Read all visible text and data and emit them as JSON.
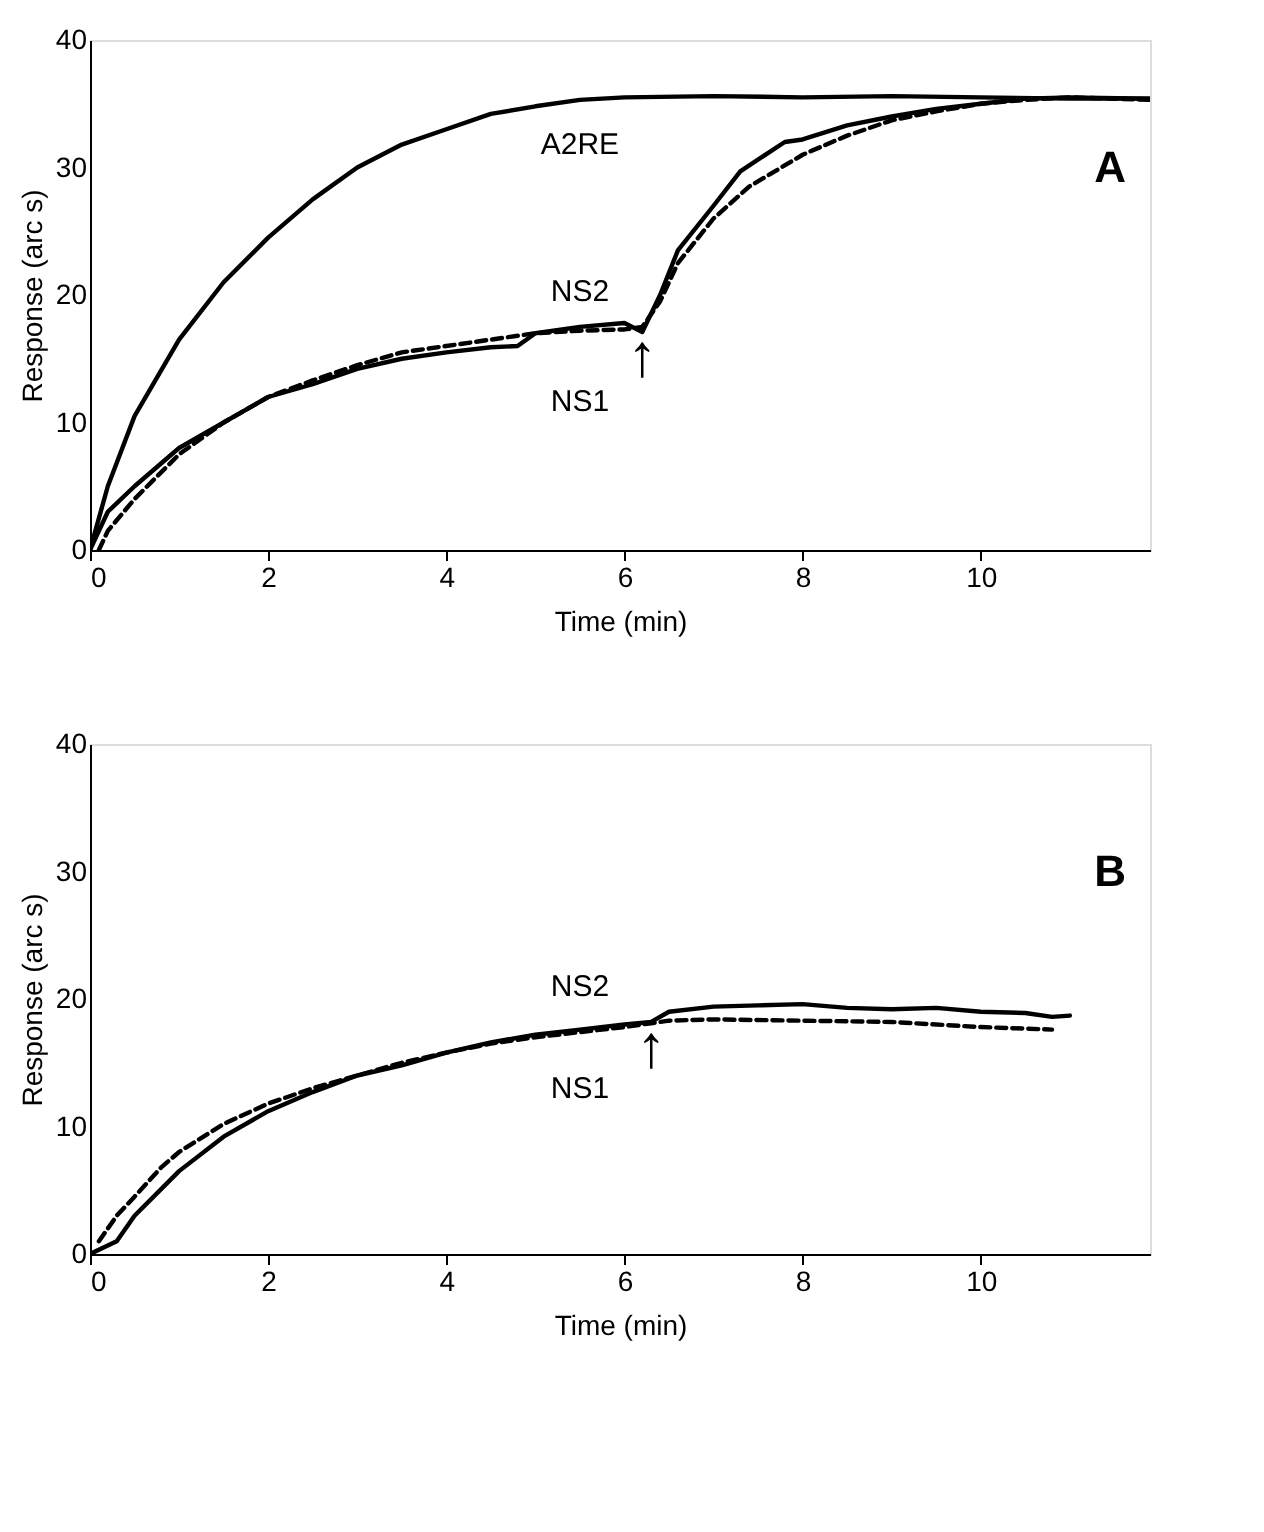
{
  "chart_data": [
    {
      "type": "line",
      "xlabel": "Time (min)",
      "ylabel": "Response (arc s)",
      "xlim": [
        0,
        11.9
      ],
      "ylim": [
        0,
        40
      ],
      "xticks": [
        0,
        2,
        4,
        6,
        8,
        10
      ],
      "yticks": [
        0,
        10,
        20,
        30,
        40
      ],
      "grid": false,
      "annotations": [
        "A",
        {
          "text": "↑",
          "x": 6.2,
          "y": 17.1
        }
      ],
      "series": [
        {
          "name": "A2RE",
          "color": "#000000",
          "line_style": "solid",
          "x": [
            0,
            0.2,
            0.5,
            1,
            1.5,
            2,
            2.5,
            3,
            3.5,
            4,
            4.5,
            5,
            5.5,
            6,
            7,
            8,
            9,
            10,
            11,
            11.9
          ],
          "values": [
            0,
            5,
            10.5,
            16.5,
            21,
            24.5,
            27.5,
            30,
            31.8,
            33,
            34.2,
            34.8,
            35.3,
            35.5,
            35.6,
            35.5,
            35.6,
            35.5,
            35.4,
            35.4
          ]
        },
        {
          "name": "NS2",
          "color": "#000000",
          "line_style": "solid",
          "x": [
            0,
            0.2,
            0.5,
            1,
            1.5,
            2,
            2.5,
            3,
            3.5,
            4,
            4.5,
            4.8,
            5,
            5.5,
            6,
            6.2,
            6.4,
            6.6,
            7,
            7.3,
            7.8,
            8,
            8.5,
            9,
            9.5,
            10,
            10.5,
            11,
            11.9
          ],
          "values": [
            0,
            3,
            5,
            8,
            10,
            12,
            13,
            14.2,
            15,
            15.5,
            15.9,
            16,
            17,
            17.5,
            17.8,
            17.1,
            20,
            23.5,
            27,
            29.7,
            32,
            32.2,
            33.3,
            34,
            34.6,
            35,
            35.4,
            35.5,
            35.4
          ]
        },
        {
          "name": "NS1",
          "color": "#000000",
          "line_style": "dashed",
          "x": [
            0.1,
            0.2,
            0.5,
            1,
            1.5,
            2,
            2.5,
            3,
            3.5,
            4,
            4.5,
            5,
            5.5,
            6,
            6.2,
            6.4,
            6.6,
            7,
            7.4,
            8,
            8.5,
            9,
            9.5,
            10,
            10.5,
            11,
            11.9
          ],
          "values": [
            0,
            1.5,
            4,
            7.5,
            10,
            12,
            13.3,
            14.5,
            15.5,
            16,
            16.5,
            17,
            17.2,
            17.3,
            17.5,
            19.5,
            22.5,
            26,
            28.5,
            31,
            32.5,
            33.7,
            34.4,
            35,
            35.3,
            35.5,
            35.3
          ]
        }
      ]
    },
    {
      "type": "line",
      "xlabel": "Time (min)",
      "ylabel": "Response (arc s)",
      "xlim": [
        0,
        11.9
      ],
      "ylim": [
        0,
        40
      ],
      "xticks": [
        0,
        2,
        4,
        6,
        8,
        10
      ],
      "yticks": [
        0,
        10,
        20,
        30,
        40
      ],
      "grid": false,
      "annotations": [
        "B",
        {
          "text": "↑",
          "x": 6.3,
          "y": 18.1
        }
      ],
      "series": [
        {
          "name": "NS2",
          "color": "#000000",
          "line_style": "solid",
          "x": [
            0,
            0.3,
            0.5,
            1,
            1.5,
            2,
            2.5,
            3,
            3.5,
            4,
            4.5,
            5,
            5.5,
            6,
            6.3,
            6.5,
            7,
            7.5,
            8,
            8.5,
            9,
            9.5,
            10,
            10.5,
            10.8,
            11
          ],
          "values": [
            0,
            1,
            3,
            6.5,
            9.2,
            11.2,
            12.7,
            14,
            14.8,
            15.8,
            16.6,
            17.2,
            17.6,
            18,
            18.2,
            19,
            19.4,
            19.5,
            19.6,
            19.3,
            19.2,
            19.3,
            19,
            18.9,
            18.6,
            18.7
          ]
        },
        {
          "name": "NS1",
          "color": "#000000",
          "line_style": "dashed",
          "x": [
            0.1,
            0.3,
            0.5,
            0.8,
            1,
            1.5,
            2,
            2.5,
            3,
            3.5,
            4,
            4.5,
            5,
            5.5,
            6,
            6.3,
            6.5,
            7,
            8,
            9,
            10,
            10.8
          ],
          "values": [
            1,
            3,
            4.5,
            6.8,
            8,
            10.2,
            11.8,
            13,
            14,
            15,
            15.8,
            16.5,
            17,
            17.4,
            17.8,
            18.1,
            18.3,
            18.4,
            18.3,
            18.2,
            17.8,
            17.6
          ]
        }
      ]
    }
  ]
}
